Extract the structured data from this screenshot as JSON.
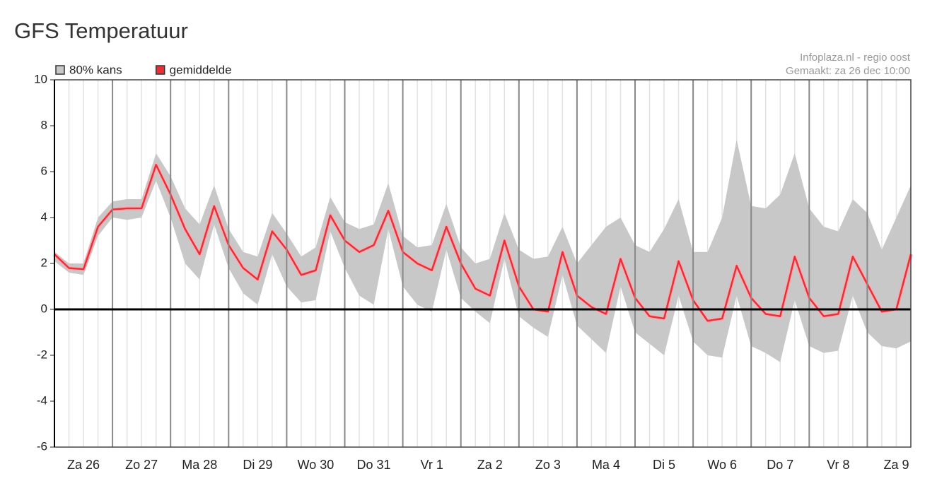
{
  "chart_data": {
    "type": "band-line",
    "title": "GFS Temperatuur",
    "source": "Infoplaza.nl - regio oost",
    "subtitle": "Gemaakt: za 26 dec 10:00",
    "legend": "top-left",
    "zero_line": true,
    "xlim": [
      0,
      354
    ],
    "ylim": [
      -6,
      10
    ],
    "yticks": [
      10,
      8,
      6,
      4,
      2,
      0,
      -2,
      -4,
      -6
    ],
    "xticks": [
      {
        "value": 12,
        "label": "Za 26"
      },
      {
        "value": 36,
        "label": "Zo 27"
      },
      {
        "value": 60,
        "label": "Ma 28"
      },
      {
        "value": 84,
        "label": "Di 29"
      },
      {
        "value": 108,
        "label": "Wo 30"
      },
      {
        "value": 132,
        "label": "Do 31"
      },
      {
        "value": 156,
        "label": "Vr 1"
      },
      {
        "value": 180,
        "label": "Za 2"
      },
      {
        "value": 204,
        "label": "Zo 3"
      },
      {
        "value": 228,
        "label": "Ma 4"
      },
      {
        "value": 252,
        "label": "Di 5"
      },
      {
        "value": 276,
        "label": "Wo 6"
      },
      {
        "value": 300,
        "label": "Do 7"
      },
      {
        "value": 324,
        "label": "Vr 8"
      },
      {
        "value": 348,
        "label": "Za 9"
      }
    ],
    "xgrid": [
      24,
      48,
      72,
      96,
      120,
      144,
      168,
      192,
      216,
      240,
      264,
      288,
      312,
      336
    ],
    "x": [
      0,
      6,
      12,
      18,
      24,
      30,
      36,
      42,
      48,
      54,
      60,
      66,
      72,
      78,
      84,
      90,
      96,
      102,
      108,
      114,
      120,
      126,
      132,
      138,
      144,
      150,
      156,
      162,
      168,
      174,
      180,
      186,
      192,
      198,
      204,
      210,
      216,
      222,
      228,
      234,
      240,
      246,
      252,
      258,
      264,
      270,
      276,
      282,
      288,
      294,
      300,
      306,
      312,
      318,
      324,
      330,
      336,
      342,
      348,
      354
    ],
    "series": [
      {
        "name": "80% kans",
        "color": "#c8c8c8",
        "low": [
          2.1,
          1.6,
          1.5,
          3.2,
          4.0,
          3.9,
          4.0,
          5.6,
          4.0,
          2.0,
          1.3,
          3.7,
          1.8,
          0.7,
          0.2,
          2.4,
          1.0,
          0.3,
          0.4,
          3.4,
          1.8,
          0.6,
          0.2,
          3.5,
          1.0,
          0.2,
          -0.1,
          2.6,
          0.5,
          -0.1,
          -0.6,
          2.2,
          -0.3,
          -0.8,
          -1.2,
          1.5,
          -0.7,
          -1.3,
          -1.9,
          1.0,
          -1.0,
          -1.5,
          -2.0,
          0.6,
          -1.4,
          -2.0,
          -2.1,
          0.6,
          -1.6,
          -1.9,
          -2.3,
          0.4,
          -1.6,
          -1.9,
          -1.8,
          0.6,
          -1.0,
          -1.6,
          -1.7,
          -1.4
        ],
        "high": [
          2.5,
          2.0,
          2.0,
          4.0,
          4.7,
          4.8,
          4.8,
          6.8,
          5.8,
          4.4,
          3.7,
          5.4,
          3.5,
          2.5,
          2.3,
          4.2,
          3.3,
          2.3,
          2.7,
          4.9,
          3.8,
          3.5,
          3.7,
          5.5,
          3.2,
          2.7,
          2.8,
          4.6,
          2.7,
          2.0,
          2.2,
          4.2,
          2.6,
          2.2,
          2.3,
          3.6,
          2.0,
          2.8,
          3.6,
          4.0,
          2.8,
          2.5,
          3.5,
          4.8,
          2.5,
          2.5,
          4.0,
          7.4,
          4.5,
          4.4,
          5.0,
          6.8,
          4.4,
          3.6,
          3.4,
          4.8,
          4.2,
          2.6,
          4.0,
          5.4
        ]
      },
      {
        "name": "gemiddelde",
        "color": "#e8303a",
        "values": [
          2.4,
          1.8,
          1.75,
          3.6,
          4.35,
          4.4,
          4.4,
          6.3,
          5.0,
          3.5,
          2.4,
          4.5,
          2.8,
          1.8,
          1.3,
          3.4,
          2.6,
          1.5,
          1.7,
          4.1,
          3.0,
          2.5,
          2.8,
          4.3,
          2.5,
          2.0,
          1.7,
          3.6,
          2.0,
          0.9,
          0.6,
          3.0,
          1.0,
          0.0,
          -0.1,
          2.5,
          0.6,
          0.1,
          -0.2,
          2.2,
          0.5,
          -0.3,
          -0.4,
          2.1,
          0.4,
          -0.5,
          -0.4,
          1.9,
          0.5,
          -0.2,
          -0.3,
          2.3,
          0.5,
          -0.3,
          -0.2,
          2.3,
          1.1,
          -0.1,
          0.0,
          2.4
        ]
      }
    ]
  }
}
